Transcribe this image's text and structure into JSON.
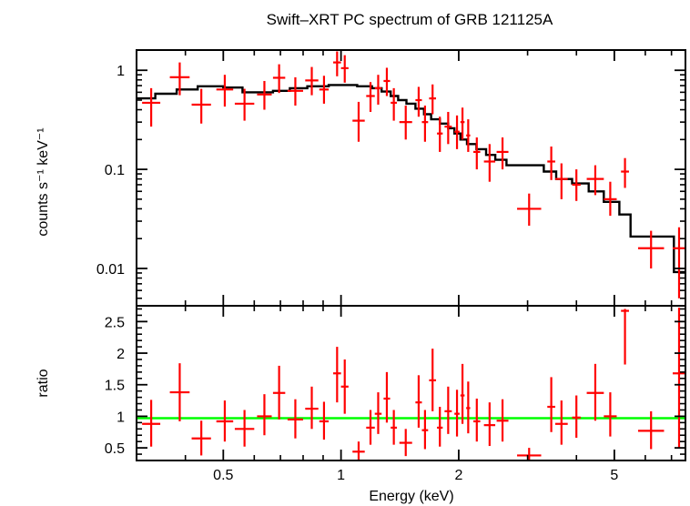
{
  "chart_data": {
    "title": "Swift–XRT PC spectrum of GRB 121125A",
    "xlabel": "Energy (keV)",
    "xscale": "log",
    "xlim": [
      0.3,
      7.6
    ],
    "xticks": [
      {
        "value": 0.5,
        "label": "0.5"
      },
      {
        "value": 1,
        "label": "1"
      },
      {
        "value": 2,
        "label": "2"
      },
      {
        "value": 5,
        "label": "5"
      }
    ],
    "colors": {
      "data": "#ff0000",
      "model": "#000000",
      "unity": "#00ff00",
      "frame": "#000000"
    },
    "panels": [
      {
        "name": "spectrum",
        "type": "scatter",
        "ylabel": "counts s⁻¹ keV⁻¹",
        "yscale": "log",
        "ylim": [
          0.0042,
          1.6
        ],
        "yticks": [
          {
            "value": 1,
            "label": "1"
          },
          {
            "value": 0.1,
            "label": "0.1"
          },
          {
            "value": 0.01,
            "label": "0.01"
          }
        ],
        "data": [
          [
            0.31,
            0.345,
            0.47,
            0.27,
            0.66
          ],
          [
            0.365,
            0.41,
            0.85,
            0.56,
            1.2
          ],
          [
            0.415,
            0.465,
            0.45,
            0.29,
            0.65
          ],
          [
            0.48,
            0.53,
            0.64,
            0.43,
            0.9
          ],
          [
            0.535,
            0.6,
            0.46,
            0.31,
            0.65
          ],
          [
            0.61,
            0.665,
            0.57,
            0.4,
            0.78
          ],
          [
            0.67,
            0.72,
            0.84,
            0.59,
            1.15
          ],
          [
            0.73,
            0.8,
            0.62,
            0.44,
            0.85
          ],
          [
            0.81,
            0.875,
            0.79,
            0.56,
            1.08
          ],
          [
            0.88,
            0.93,
            0.64,
            0.46,
            0.88
          ],
          [
            0.955,
            1.0,
            1.2,
            0.87,
            1.55
          ],
          [
            1.0,
            1.045,
            1.05,
            0.75,
            1.42
          ],
          [
            1.07,
            1.15,
            0.31,
            0.19,
            0.48
          ],
          [
            1.16,
            1.22,
            0.55,
            0.38,
            0.76
          ],
          [
            1.22,
            1.27,
            0.66,
            0.45,
            0.9
          ],
          [
            1.285,
            1.335,
            0.78,
            0.55,
            1.06
          ],
          [
            1.34,
            1.39,
            0.47,
            0.31,
            0.66
          ],
          [
            1.41,
            1.52,
            0.3,
            0.2,
            0.44
          ],
          [
            1.55,
            1.61,
            0.5,
            0.34,
            0.68
          ],
          [
            1.61,
            1.67,
            0.3,
            0.19,
            0.44
          ],
          [
            1.68,
            1.75,
            0.52,
            0.36,
            0.72
          ],
          [
            1.76,
            1.82,
            0.23,
            0.15,
            0.34
          ],
          [
            1.84,
            1.92,
            0.27,
            0.18,
            0.38
          ],
          [
            1.95,
            2.01,
            0.24,
            0.16,
            0.35
          ],
          [
            2.02,
            2.07,
            0.3,
            0.2,
            0.42
          ],
          [
            2.09,
            2.14,
            0.22,
            0.15,
            0.32
          ],
          [
            2.18,
            2.27,
            0.15,
            0.1,
            0.21
          ],
          [
            2.32,
            2.48,
            0.12,
            0.075,
            0.18
          ],
          [
            2.5,
            2.68,
            0.15,
            0.1,
            0.21
          ],
          [
            2.82,
            3.25,
            0.04,
            0.027,
            0.057
          ],
          [
            3.37,
            3.53,
            0.12,
            0.078,
            0.17
          ],
          [
            3.53,
            3.8,
            0.08,
            0.05,
            0.115
          ],
          [
            3.9,
            4.1,
            0.07,
            0.048,
            0.1
          ],
          [
            4.25,
            4.7,
            0.08,
            0.055,
            0.11
          ],
          [
            4.7,
            5.07,
            0.05,
            0.034,
            0.075
          ],
          [
            5.2,
            5.45,
            0.095,
            0.065,
            0.13
          ],
          [
            5.75,
            6.7,
            0.016,
            0.01,
            0.024
          ],
          [
            7.05,
            7.6,
            0.016,
            0.005,
            0.026
          ]
        ],
        "model_steps": [
          [
            0.3,
            0.52
          ],
          [
            0.335,
            0.58
          ],
          [
            0.38,
            0.64
          ],
          [
            0.43,
            0.69
          ],
          [
            0.5,
            0.67
          ],
          [
            0.56,
            0.6
          ],
          [
            0.67,
            0.62
          ],
          [
            0.74,
            0.66
          ],
          [
            0.82,
            0.69
          ],
          [
            0.93,
            0.71
          ],
          [
            1.02,
            0.71
          ],
          [
            1.1,
            0.69
          ],
          [
            1.2,
            0.66
          ],
          [
            1.27,
            0.61
          ],
          [
            1.34,
            0.55
          ],
          [
            1.4,
            0.5
          ],
          [
            1.47,
            0.46
          ],
          [
            1.55,
            0.41
          ],
          [
            1.63,
            0.36
          ],
          [
            1.7,
            0.32
          ],
          [
            1.79,
            0.29
          ],
          [
            1.88,
            0.26
          ],
          [
            1.95,
            0.23
          ],
          [
            2.02,
            0.2
          ],
          [
            2.1,
            0.18
          ],
          [
            2.22,
            0.16
          ],
          [
            2.35,
            0.14
          ],
          [
            2.48,
            0.125
          ],
          [
            2.65,
            0.11
          ],
          [
            3.3,
            0.095
          ],
          [
            3.55,
            0.08
          ],
          [
            3.9,
            0.072
          ],
          [
            4.3,
            0.06
          ],
          [
            4.7,
            0.047
          ],
          [
            5.15,
            0.035
          ],
          [
            5.5,
            0.021
          ],
          [
            7.1,
            0.0092
          ],
          [
            7.6,
            0.0092
          ]
        ]
      },
      {
        "name": "ratio",
        "type": "scatter",
        "ylabel": "ratio",
        "yscale": "linear",
        "ylim": [
          0.3,
          2.75
        ],
        "yticks": [
          {
            "value": 0.5,
            "label": "0.5"
          },
          {
            "value": 1,
            "label": "1"
          },
          {
            "value": 1.5,
            "label": "1.5"
          },
          {
            "value": 2,
            "label": "2"
          },
          {
            "value": 2.5,
            "label": "2.5"
          }
        ],
        "reference_line": 0.97,
        "data": [
          [
            0.31,
            0.345,
            0.88,
            0.52,
            1.26
          ],
          [
            0.365,
            0.41,
            1.38,
            0.92,
            1.84
          ],
          [
            0.415,
            0.465,
            0.65,
            0.38,
            0.93
          ],
          [
            0.48,
            0.53,
            0.92,
            0.6,
            1.25
          ],
          [
            0.535,
            0.6,
            0.8,
            0.52,
            1.1
          ],
          [
            0.61,
            0.665,
            1.0,
            0.7,
            1.35
          ],
          [
            0.67,
            0.72,
            1.37,
            0.95,
            1.8
          ],
          [
            0.73,
            0.8,
            0.95,
            0.65,
            1.27
          ],
          [
            0.81,
            0.875,
            1.12,
            0.8,
            1.47
          ],
          [
            0.88,
            0.93,
            0.92,
            0.63,
            1.23
          ],
          [
            0.955,
            1.0,
            1.68,
            1.22,
            2.1
          ],
          [
            1.0,
            1.045,
            1.47,
            1.04,
            1.9
          ],
          [
            1.07,
            1.15,
            0.44,
            0.3,
            0.6
          ],
          [
            1.16,
            1.22,
            0.82,
            0.55,
            1.1
          ],
          [
            1.22,
            1.27,
            1.04,
            0.72,
            1.38
          ],
          [
            1.285,
            1.335,
            1.28,
            0.9,
            1.7
          ],
          [
            1.34,
            1.39,
            0.82,
            0.55,
            1.1
          ],
          [
            1.41,
            1.52,
            0.58,
            0.37,
            0.8
          ],
          [
            1.55,
            1.61,
            1.22,
            0.82,
            1.65
          ],
          [
            1.61,
            1.67,
            0.78,
            0.48,
            1.1
          ],
          [
            1.68,
            1.75,
            1.57,
            1.08,
            2.07
          ],
          [
            1.76,
            1.82,
            0.82,
            0.52,
            1.15
          ],
          [
            1.84,
            1.92,
            1.08,
            0.72,
            1.47
          ],
          [
            1.95,
            2.01,
            1.04,
            0.68,
            1.42
          ],
          [
            2.02,
            2.07,
            1.33,
            0.88,
            1.83
          ],
          [
            2.09,
            2.14,
            1.13,
            0.73,
            1.55
          ],
          [
            2.18,
            2.27,
            0.92,
            0.6,
            1.28
          ],
          [
            2.32,
            2.48,
            0.86,
            0.53,
            1.22
          ],
          [
            2.5,
            2.68,
            0.93,
            0.6,
            1.27
          ],
          [
            2.82,
            3.25,
            0.38,
            0.3,
            0.5
          ],
          [
            3.37,
            3.53,
            1.15,
            0.75,
            1.62
          ],
          [
            3.53,
            3.8,
            0.88,
            0.55,
            1.25
          ],
          [
            3.9,
            4.1,
            0.98,
            0.66,
            1.33
          ],
          [
            4.25,
            4.7,
            1.37,
            0.93,
            1.83
          ],
          [
            4.7,
            5.07,
            1.0,
            0.68,
            1.38
          ],
          [
            5.2,
            5.45,
            2.67,
            1.82,
            2.7
          ],
          [
            5.75,
            6.7,
            0.77,
            0.48,
            1.08
          ],
          [
            7.05,
            7.6,
            1.68,
            0.5,
            2.72
          ]
        ]
      }
    ]
  }
}
